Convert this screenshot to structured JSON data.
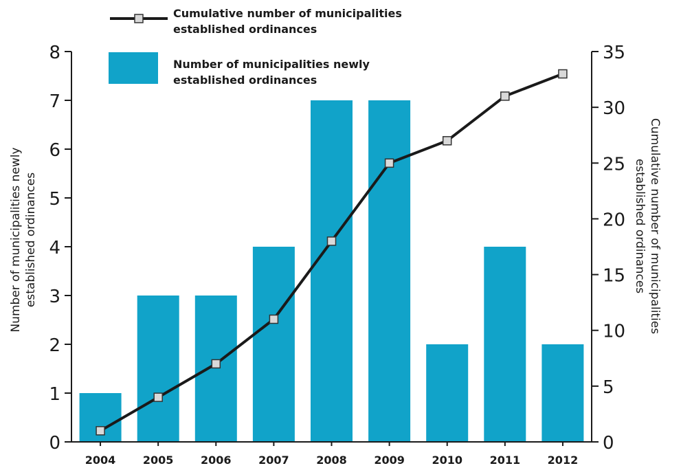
{
  "chart_data": {
    "type": "bar",
    "categories": [
      "2004",
      "2005",
      "2006",
      "2007",
      "2008",
      "2009",
      "2010",
      "2011",
      "2012"
    ],
    "series": [
      {
        "name": "Number of municipalities newly established ordinances",
        "chart_type": "bar",
        "axis": "left",
        "color": "#11a3c9",
        "values": [
          1,
          3,
          3,
          4,
          7,
          7,
          2,
          4,
          2
        ]
      },
      {
        "name": "Cumulative number of municipalities established ordinances",
        "chart_type": "line",
        "axis": "right",
        "color": "#1a1a1a",
        "marker_fill": "#d9d9d9",
        "values": [
          1,
          4,
          7,
          11,
          18,
          25,
          27,
          31,
          33
        ]
      }
    ],
    "ylabel_left": "Number of municipalities newly established ordinances",
    "ylabel_right": "Cumulative number of municipalities established ordinances",
    "ylim_left": [
      0,
      8
    ],
    "ylim_right": [
      0,
      35
    ],
    "yticks_left": [
      "0",
      "1",
      "2",
      "3",
      "4",
      "5",
      "6",
      "7",
      "8"
    ],
    "yticks_right": [
      "0",
      "5",
      "10",
      "15",
      "20",
      "25",
      "30",
      "35"
    ],
    "legend": {
      "placement": "top-left",
      "line_label": "Cumulative number of municipalities established ordinances",
      "bar_label": "Number of municipalities newly established ordinances"
    },
    "grid": false
  }
}
